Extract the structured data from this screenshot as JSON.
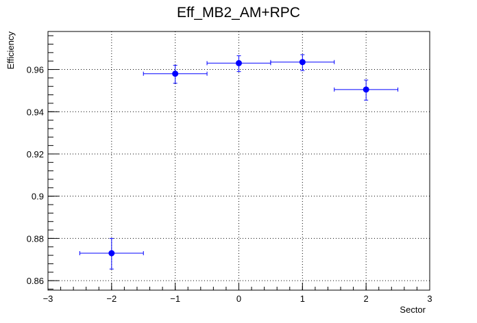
{
  "chart_data": {
    "type": "scatter",
    "title": "Eff_MB2_AM+RPC",
    "xlabel": "Sector",
    "ylabel": "Efficiency",
    "xlim": [
      -3,
      3
    ],
    "ylim": [
      0.8555,
      0.978
    ],
    "grid": true,
    "x_ticks": [
      -3,
      -2,
      -1,
      0,
      1,
      2,
      3
    ],
    "y_ticks": [
      0.86,
      0.88,
      0.9,
      0.92,
      0.94,
      0.96
    ],
    "x_tick_labels": [
      "−3",
      "−2",
      "−1",
      "0",
      "1",
      "2",
      "3"
    ],
    "y_tick_labels": [
      "0.86",
      "0.88",
      "0.9",
      "0.92",
      "0.94",
      "0.96"
    ],
    "marker_color": "#0000ff",
    "points": [
      {
        "x": -2,
        "y": 0.873,
        "xerr": 0.5,
        "yerr_low": 0.0075,
        "yerr_high": 0.007
      },
      {
        "x": -1,
        "y": 0.958,
        "xerr": 0.5,
        "yerr_low": 0.0045,
        "yerr_high": 0.004
      },
      {
        "x": 0,
        "y": 0.963,
        "xerr": 0.5,
        "yerr_low": 0.004,
        "yerr_high": 0.0035
      },
      {
        "x": 1,
        "y": 0.9635,
        "xerr": 0.5,
        "yerr_low": 0.004,
        "yerr_high": 0.0035
      },
      {
        "x": 2,
        "y": 0.9505,
        "xerr": 0.5,
        "yerr_low": 0.005,
        "yerr_high": 0.0045
      }
    ]
  }
}
